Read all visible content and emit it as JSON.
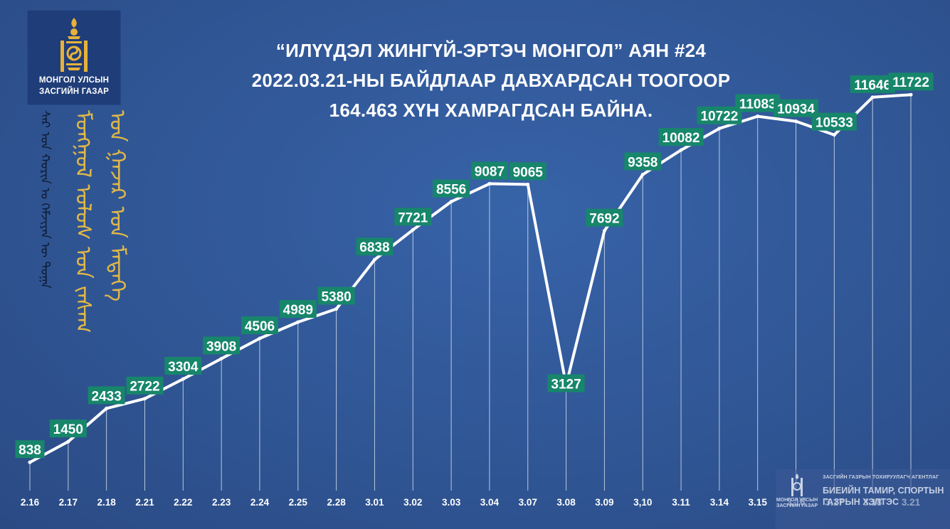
{
  "brand": {
    "line1": "МОНГОЛ УЛСЫН",
    "line2": "ЗАСГИЙН ГАЗАР"
  },
  "title": {
    "line1": "“ИЛҮҮДЭЛ ЖИНГҮЙ-ЭРТЭЧ МОНГОЛ” АЯН #24",
    "line2": "2022.03.21-НЫ БАЙДЛААР ДАВХАРДСАН ТООГООР",
    "line3": "164.463 ХҮН ХАМРАГДСАН БАЙНА."
  },
  "mongol_script": {
    "col1": "ᠰᠠᠷ ᠤᠨ ᠬᠣᠷᠢᠨ ᠤ ᠬᠡᠮᠵᠢᠶᠡᠨ ᠦ ᠲᠣᠭᠠ",
    "col2": "ᠮᠣᠩᠭᠣᠯ ᠤᠯᠤᠰ ᠤᠨ ᠵᠠᠰᠠᠭ",
    "col3": "ᠤᠨ ᠭᠠᠵᠠᠷ ᠤᠨ ᠮᠡᠳᠡᠭᠡ"
  },
  "watermark": {
    "agency": "ЗАСГИЙН ГАЗРЫН ТОХИРУУЛАГЧ АГЕНТЛАГ",
    "line1": "БИЕИЙН ТАМИР, СПОРТЫН",
    "line2": "ГАЗРЫН ХЭЛТЭС",
    "logo_line1": "МОНГОЛ УЛСЫН",
    "logo_line2": "ЗАСГИЙН ГАЗАР"
  },
  "colors": {
    "background": "#2f5496",
    "line": "#ffffff",
    "label_bg": "#17866b",
    "label_text": "#ffffff",
    "title_text": "#ffffff",
    "script_gold": "#e0b848"
  },
  "chart_data": {
    "type": "line",
    "title": "",
    "xlabel": "",
    "ylabel": "",
    "categories": [
      "2.16",
      "2.17",
      "2.18",
      "2.21",
      "2.22",
      "2.23",
      "2.24",
      "2.25",
      "2.28",
      "3.01",
      "3.02",
      "3.03",
      "3.04",
      "3.07",
      "3.08",
      "3.09",
      "3,10",
      "3.11",
      "3.14",
      "3.15",
      "3.16",
      "3.17",
      "3.18",
      "3.21"
    ],
    "values": [
      838,
      1450,
      2433,
      2722,
      3304,
      3908,
      4506,
      4989,
      5380,
      6838,
      7721,
      8556,
      9087,
      9065,
      3127,
      7692,
      9358,
      10082,
      10722,
      11083,
      10934,
      10533,
      11646,
      11722
    ],
    "value_labels": [
      "838",
      "1450",
      "2433",
      "2722",
      "3304",
      "3908",
      "4506",
      "4989",
      "5380",
      "6838",
      "7721",
      "8556",
      "9087",
      "9065",
      "3127",
      "7692",
      "9358",
      "10082",
      "10722",
      "11083",
      "10934",
      "10533",
      "11646",
      "11722"
    ],
    "ylim": [
      0,
      12000
    ],
    "grid": false,
    "legend": "none"
  }
}
